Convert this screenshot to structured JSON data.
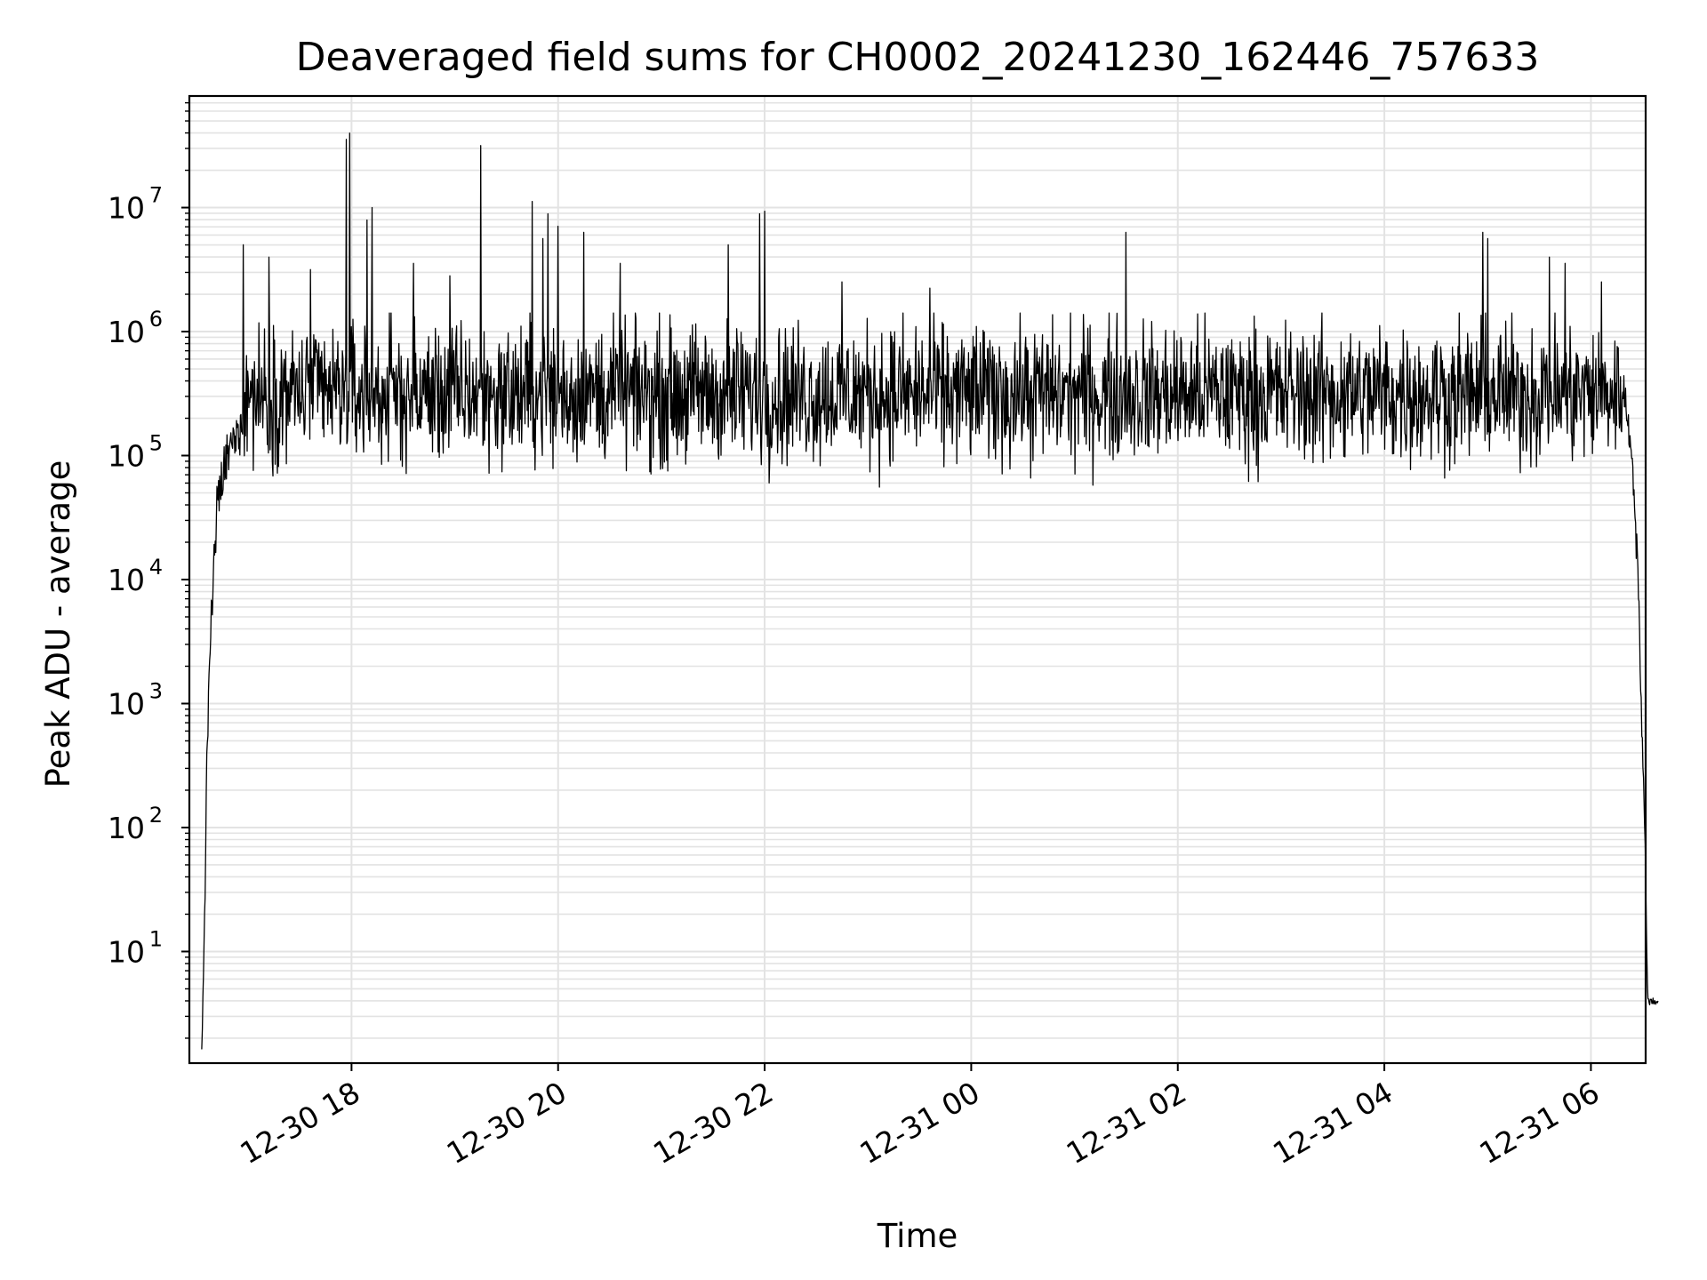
{
  "chart_data": {
    "type": "line",
    "title": "Deaveraged field sums for CH0002_20241230_162446_757633",
    "xlabel": "Time",
    "ylabel": "Peak ADU - average",
    "yscale": "log",
    "ylim_exp": [
      0.1,
      7.9
    ],
    "xlim_hours": [
      16.43,
      6.53
    ],
    "grid": true,
    "line_color": "#000000",
    "grid_color": "#e3e3e3",
    "x_ticks": [
      {
        "hour": 18,
        "label": "12-30 18"
      },
      {
        "hour": 20,
        "label": "12-30 20"
      },
      {
        "hour": 22,
        "label": "12-30 22"
      },
      {
        "hour": 24,
        "label": "12-31 00"
      },
      {
        "hour": 26,
        "label": "12-31 02"
      },
      {
        "hour": 28,
        "label": "12-31 04"
      },
      {
        "hour": 30,
        "label": "12-31 06"
      }
    ],
    "y_ticks": [
      {
        "exp": 1,
        "base": "10",
        "sup": "1"
      },
      {
        "exp": 2,
        "base": "10",
        "sup": "2"
      },
      {
        "exp": 3,
        "base": "10",
        "sup": "3"
      },
      {
        "exp": 4,
        "base": "10",
        "sup": "4"
      },
      {
        "exp": 5,
        "base": "10",
        "sup": "5"
      },
      {
        "exp": 6,
        "base": "10",
        "sup": "6"
      },
      {
        "exp": 7,
        "base": "10",
        "sup": "7"
      }
    ],
    "series_summary": {
      "start_hour": 16.55,
      "end_hour": 30.65,
      "typical_log10_level": 5.5,
      "log10_noise_range": [
        4.9,
        6.0
      ],
      "start_ramp": [
        {
          "hour": 16.55,
          "log10": 0.1
        },
        {
          "hour": 16.58,
          "log10": 1.5
        },
        {
          "hour": 16.62,
          "log10": 3.3
        },
        {
          "hour": 16.7,
          "log10": 4.6
        },
        {
          "hour": 16.8,
          "log10": 5.0
        },
        {
          "hour": 16.95,
          "log10": 5.3
        }
      ],
      "end_drop": [
        {
          "hour": 30.3,
          "log10": 5.6
        },
        {
          "hour": 30.4,
          "log10": 5.0
        },
        {
          "hour": 30.45,
          "log10": 4.2
        },
        {
          "hour": 30.52,
          "log10": 2.0
        },
        {
          "hour": 30.55,
          "log10": 0.6
        },
        {
          "hour": 30.65,
          "log10": 0.6
        }
      ],
      "spikes": [
        {
          "hour": 16.95,
          "log10": 6.7
        },
        {
          "hour": 17.2,
          "log10": 6.6
        },
        {
          "hour": 17.6,
          "log10": 6.5
        },
        {
          "hour": 17.95,
          "log10": 7.55
        },
        {
          "hour": 17.98,
          "log10": 7.6
        },
        {
          "hour": 18.15,
          "log10": 6.9
        },
        {
          "hour": 18.2,
          "log10": 7.0
        },
        {
          "hour": 18.6,
          "log10": 6.55
        },
        {
          "hour": 18.95,
          "log10": 6.45
        },
        {
          "hour": 19.25,
          "log10": 7.5
        },
        {
          "hour": 19.75,
          "log10": 7.05
        },
        {
          "hour": 19.85,
          "log10": 6.75
        },
        {
          "hour": 19.9,
          "log10": 6.95
        },
        {
          "hour": 20.0,
          "log10": 6.85
        },
        {
          "hour": 20.25,
          "log10": 6.8
        },
        {
          "hour": 20.6,
          "log10": 6.55
        },
        {
          "hour": 21.65,
          "log10": 6.7
        },
        {
          "hour": 21.95,
          "log10": 6.95
        },
        {
          "hour": 22.0,
          "log10": 6.97
        },
        {
          "hour": 22.75,
          "log10": 6.4
        },
        {
          "hour": 23.6,
          "log10": 6.35
        },
        {
          "hour": 25.5,
          "log10": 6.8
        },
        {
          "hour": 28.95,
          "log10": 6.8
        },
        {
          "hour": 29.0,
          "log10": 6.75
        },
        {
          "hour": 29.6,
          "log10": 6.6
        },
        {
          "hour": 29.75,
          "log10": 6.55
        },
        {
          "hour": 30.1,
          "log10": 6.4
        }
      ]
    }
  }
}
